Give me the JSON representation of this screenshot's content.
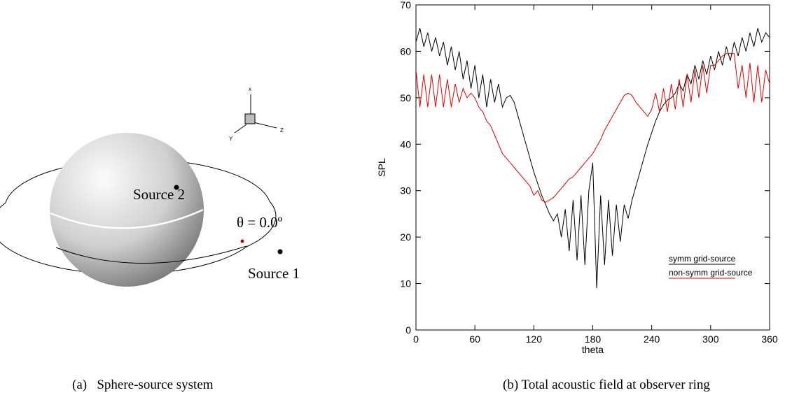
{
  "diagram": {
    "axis_x": "x",
    "axis_y": "Y",
    "axis_z": "Z",
    "source_2": "Source 2",
    "angle": "θ = 0.0º",
    "source_1": "Source 1"
  },
  "captions": [
    "(a)   Sphere-source system",
    "(b) Total acoustic field at observer ring"
  ],
  "chart_data": {
    "type": "line",
    "x_label": "theta",
    "y_label": "SPL",
    "x": [
      0,
      4,
      8,
      12,
      16,
      20,
      24,
      28,
      32,
      36,
      40,
      44,
      48,
      52,
      56,
      60,
      64,
      68,
      72,
      76,
      80,
      84,
      88,
      92,
      96,
      100,
      104,
      108,
      112,
      116,
      120,
      124,
      128,
      132,
      136,
      140,
      144,
      148,
      152,
      156,
      160,
      164,
      168,
      172,
      176,
      180,
      184,
      188,
      192,
      196,
      200,
      204,
      208,
      212,
      216,
      220,
      224,
      228,
      232,
      236,
      240,
      244,
      248,
      252,
      256,
      260,
      264,
      268,
      272,
      276,
      280,
      284,
      288,
      292,
      296,
      300,
      304,
      308,
      312,
      316,
      320,
      324,
      328,
      332,
      336,
      340,
      344,
      348,
      352,
      356,
      360
    ],
    "series": [
      {
        "name": "symm grid-source",
        "color": "#000000",
        "values": [
          62,
          65,
          61,
          64,
          60,
          63,
          59,
          62,
          57,
          61,
          56,
          60,
          54,
          58,
          52,
          57,
          50,
          55,
          48,
          54,
          49,
          53,
          48,
          50,
          50.5,
          49,
          46,
          43,
          40,
          37,
          34,
          31.5,
          29,
          27,
          25,
          23.5,
          25,
          20,
          26,
          17,
          28,
          15,
          29,
          14,
          30,
          36,
          9,
          29,
          14,
          28,
          16,
          27,
          19,
          27,
          24,
          28,
          31,
          34,
          37,
          40,
          42.5,
          45,
          47,
          48.5,
          49.5,
          50,
          51,
          53,
          51.5,
          55,
          53,
          57,
          54,
          58,
          55,
          59,
          56,
          60,
          57,
          61,
          58,
          62,
          59,
          63,
          60,
          64,
          61,
          65,
          62,
          64,
          63
        ]
      },
      {
        "name": "non-symm grid-source",
        "color": "#e00000",
        "values": [
          56,
          48,
          55,
          48,
          55,
          48,
          55,
          48,
          54,
          48,
          53,
          49,
          52,
          50,
          51,
          50,
          48,
          47,
          45,
          44,
          42,
          40,
          38,
          37,
          36,
          35,
          34,
          33,
          32,
          31,
          29,
          30,
          28,
          27.5,
          28,
          28.5,
          29.5,
          30.5,
          31.5,
          32.5,
          33,
          34,
          35,
          36,
          37,
          38,
          39.5,
          41,
          43,
          44.5,
          46,
          47.5,
          49,
          50.5,
          51,
          50.5,
          49,
          48,
          47,
          46,
          47.5,
          51,
          47,
          52,
          47,
          53,
          47.5,
          54,
          48,
          55,
          49,
          56,
          50,
          57,
          51,
          57,
          57,
          58,
          59,
          59.5,
          59.5,
          59.5,
          52,
          57,
          50,
          57.5,
          49,
          57,
          49,
          56,
          53
        ]
      }
    ],
    "xlim": [
      0,
      360
    ],
    "xticks": [
      0,
      60,
      120,
      180,
      240,
      300,
      360
    ],
    "ylim": [
      0,
      70
    ],
    "yticks": [
      0,
      10,
      20,
      30,
      40,
      50,
      60,
      70
    ],
    "legend": "right"
  }
}
